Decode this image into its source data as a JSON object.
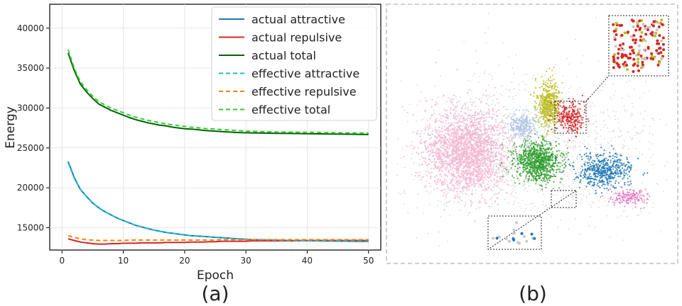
{
  "figure": {
    "panel_a_label": "(a)",
    "panel_b_label": "(b)"
  },
  "chart_data": [
    {
      "type": "line",
      "xlabel": "Epoch",
      "ylabel": "Energy",
      "xlim": [
        -2,
        52
      ],
      "ylim": [
        12200,
        43000
      ],
      "xticks": [
        0,
        10,
        20,
        30,
        40,
        50
      ],
      "yticks": [
        15000,
        20000,
        25000,
        30000,
        35000,
        40000
      ],
      "grid": true,
      "legend_position": "top-right",
      "x": [
        1,
        2,
        3,
        4,
        5,
        6,
        7,
        8,
        9,
        10,
        11,
        12,
        13,
        14,
        15,
        16,
        17,
        18,
        19,
        20,
        21,
        22,
        23,
        24,
        25,
        26,
        27,
        28,
        29,
        30,
        31,
        32,
        33,
        34,
        35,
        36,
        37,
        38,
        39,
        40,
        41,
        42,
        43,
        44,
        45,
        46,
        47,
        48,
        49,
        50
      ],
      "series": [
        {
          "name": "actual attractive",
          "color": "#1f77b4",
          "dash": "solid",
          "values": [
            23300,
            21300,
            19800,
            18900,
            18100,
            17500,
            17000,
            16600,
            16200,
            15900,
            15600,
            15300,
            15100,
            14900,
            14700,
            14550,
            14400,
            14300,
            14200,
            14100,
            14000,
            13950,
            13900,
            13850,
            13800,
            13750,
            13700,
            13650,
            13600,
            13550,
            13500,
            13500,
            13480,
            13460,
            13440,
            13420,
            13400,
            13390,
            13380,
            13370,
            13360,
            13350,
            13340,
            13330,
            13320,
            13310,
            13300,
            13290,
            13280,
            13270
          ]
        },
        {
          "name": "actual repulsive",
          "color": "#d62728",
          "dash": "solid",
          "values": [
            13600,
            13400,
            13200,
            13100,
            13000,
            12950,
            12950,
            13000,
            13000,
            13050,
            13050,
            13050,
            13100,
            13100,
            13100,
            13100,
            13150,
            13150,
            13150,
            13150,
            13200,
            13200,
            13200,
            13250,
            13250,
            13300,
            13300,
            13300,
            13300,
            13300,
            13350,
            13350,
            13350,
            13350,
            13350,
            13350,
            13350,
            13350,
            13400,
            13400,
            13400,
            13400,
            13400,
            13400,
            13400,
            13400,
            13400,
            13400,
            13400,
            13400
          ]
        },
        {
          "name": "actual total",
          "color": "#006400",
          "dash": "solid",
          "values": [
            36900,
            34700,
            33000,
            32000,
            31200,
            30500,
            30100,
            29700,
            29400,
            29100,
            28800,
            28550,
            28350,
            28150,
            28000,
            27850,
            27750,
            27600,
            27500,
            27400,
            27350,
            27300,
            27200,
            27150,
            27100,
            27050,
            27000,
            26950,
            26920,
            26900,
            26880,
            26860,
            26850,
            26840,
            26830,
            26820,
            26810,
            26800,
            26790,
            26780,
            26770,
            26760,
            26750,
            26740,
            26730,
            26720,
            26710,
            26700,
            26690,
            26680
          ]
        },
        {
          "name": "effective attractive",
          "color": "#17becf",
          "dash": "dashed",
          "values": [
            23200,
            21200,
            19800,
            18900,
            18100,
            17500,
            17000,
            16600,
            16200,
            15900,
            15600,
            15300,
            15100,
            14900,
            14700,
            14550,
            14400,
            14300,
            14200,
            14100,
            14000,
            13950,
            13900,
            13850,
            13800,
            13750,
            13700,
            13650,
            13600,
            13550,
            13500,
            13500,
            13480,
            13460,
            13440,
            13420,
            13400,
            13390,
            13380,
            13370,
            13360,
            13350,
            13340,
            13330,
            13320,
            13310,
            13300,
            13290,
            13280,
            13270
          ]
        },
        {
          "name": "effective repulsive",
          "color": "#ff7f0e",
          "dash": "dashed",
          "values": [
            14000,
            13800,
            13600,
            13500,
            13450,
            13400,
            13400,
            13400,
            13400,
            13400,
            13450,
            13450,
            13450,
            13450,
            13450,
            13450,
            13450,
            13450,
            13450,
            13450,
            13450,
            13450,
            13450,
            13450,
            13450,
            13500,
            13500,
            13500,
            13500,
            13500,
            13500,
            13500,
            13500,
            13500,
            13500,
            13500,
            13500,
            13500,
            13500,
            13500,
            13500,
            13500,
            13500,
            13500,
            13500,
            13500,
            13500,
            13500,
            13500,
            13500
          ]
        },
        {
          "name": "effective total",
          "color": "#32cd32",
          "dash": "dashed",
          "values": [
            37300,
            35000,
            33300,
            32300,
            31500,
            30800,
            30400,
            30000,
            29700,
            29400,
            29100,
            28850,
            28650,
            28450,
            28300,
            28150,
            28000,
            27900,
            27800,
            27700,
            27600,
            27550,
            27450,
            27400,
            27350,
            27300,
            27250,
            27200,
            27150,
            27100,
            27080,
            27060,
            27040,
            27020,
            27000,
            26990,
            26980,
            26970,
            26960,
            26950,
            26940,
            26930,
            26920,
            26910,
            26900,
            26890,
            26880,
            26870,
            26860,
            26850
          ]
        }
      ]
    },
    {
      "type": "scatter",
      "description": "2D embedding scatter with colored clusters and two zoom insets",
      "clusters": [
        {
          "color": "#f4b6d2",
          "n": 2200
        },
        {
          "color": "#2ca02c",
          "n": 900
        },
        {
          "color": "#bcbd22",
          "n": 500
        },
        {
          "color": "#1f77b4",
          "n": 500
        },
        {
          "color": "#d62728",
          "n": 260
        },
        {
          "color": "#aec7e8",
          "n": 260
        },
        {
          "color": "#e377c2",
          "n": 160
        },
        {
          "color": "#c7c7c7",
          "n": 1400
        }
      ]
    }
  ]
}
